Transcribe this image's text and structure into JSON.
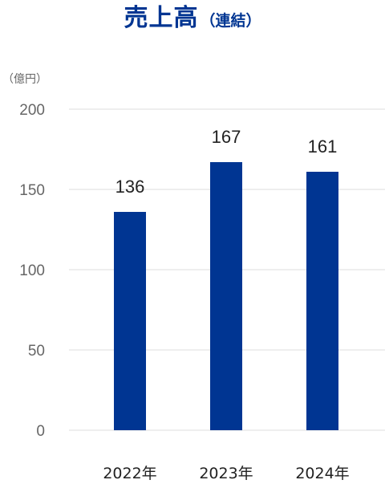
{
  "title": {
    "main": "売上高",
    "sub": "（連結）"
  },
  "colors": {
    "bar": "#003592",
    "title": "#003592",
    "grid": "#dddddd"
  },
  "chart_data": {
    "type": "bar",
    "title": "売上高（連結）",
    "ylabel": "（億円）",
    "xlabel": "",
    "categories": [
      "2022年",
      "2023年",
      "2024年"
    ],
    "values": [
      136,
      167,
      161
    ],
    "data_labels": [
      "136",
      "167",
      "161"
    ],
    "ylim": [
      0,
      200
    ],
    "yticks": [
      0,
      50,
      100,
      150,
      200
    ],
    "grid": true,
    "legend": "none"
  }
}
